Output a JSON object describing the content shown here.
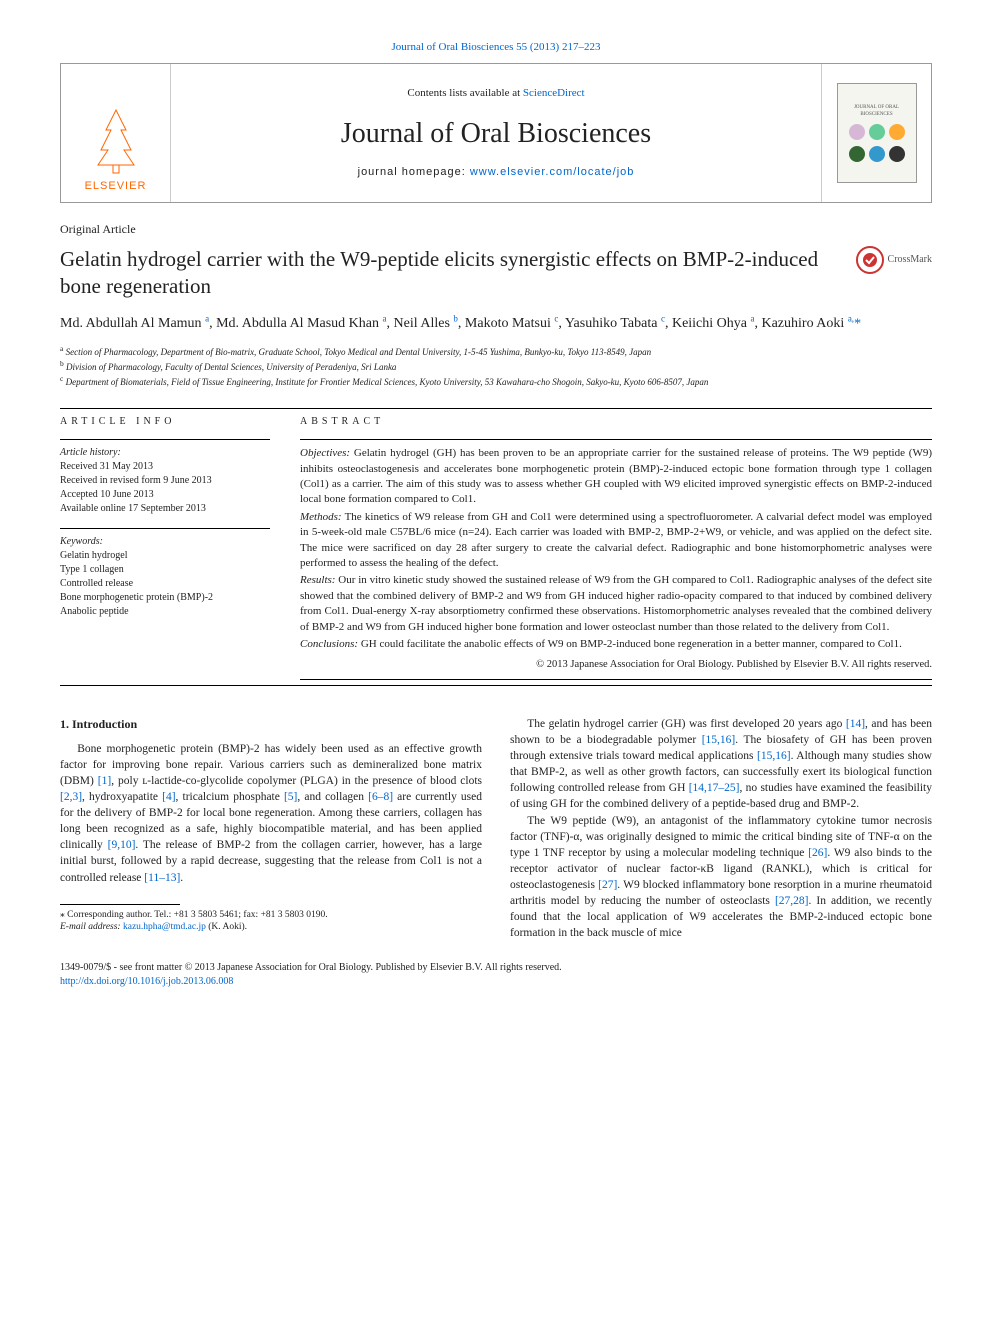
{
  "top_link": "Journal of Oral Biosciences 55 (2013) 217–223",
  "masthead": {
    "sd_prefix": "Contents lists available at ",
    "sd_link": "ScienceDirect",
    "journal_name": "Journal of Oral Biosciences",
    "homepage_prefix": "journal homepage: ",
    "homepage_url": "www.elsevier.com/locate/job",
    "publisher_label": "ELSEVIER",
    "publisher_color": "#ff6600",
    "cover_colors": {
      "row1": [
        "#d6b8d6",
        "#66cc99",
        "#ffaa33"
      ],
      "row2": [
        "#336633",
        "#3399cc",
        "#333333"
      ]
    }
  },
  "article_type": "Original Article",
  "title": "Gelatin hydrogel carrier with the W9-peptide elicits synergistic effects on BMP-2-induced bone regeneration",
  "crossmark_label": "CrossMark",
  "authors_html": "Md. Abdullah Al Mamun <sup>a</sup>, Md. Abdulla Al Masud Khan <sup>a</sup>, Neil Alles <sup>b</sup>, Makoto Matsui <sup>c</sup>, Yasuhiko Tabata <sup>c</sup>, Keiichi Ohya <sup>a</sup>, Kazuhiro Aoki <sup>a,</sup>",
  "affiliations": [
    {
      "sup": "a",
      "text": "Section of Pharmacology, Department of Bio-matrix, Graduate School, Tokyo Medical and Dental University, 1-5-45 Yushima, Bunkyo-ku, Tokyo 113-8549, Japan"
    },
    {
      "sup": "b",
      "text": "Division of Pharmacology, Faculty of Dental Sciences, University of Peradeniya, Sri Lanka"
    },
    {
      "sup": "c",
      "text": "Department of Biomaterials, Field of Tissue Engineering, Institute for Frontier Medical Sciences, Kyoto University, 53 Kawahara-cho Shogoin, Sakyo-ku, Kyoto 606-8507, Japan"
    }
  ],
  "info_label": "ARTICLE INFO",
  "abstract_label": "ABSTRACT",
  "history": {
    "label": "Article history:",
    "received": "Received 31 May 2013",
    "revised": "Received in revised form 9 June 2013",
    "accepted": "Accepted 10 June 2013",
    "online": "Available online 17 September 2013"
  },
  "keywords_label": "Keywords:",
  "keywords": [
    "Gelatin hydrogel",
    "Type 1 collagen",
    "Controlled release",
    "Bone morphogenetic protein (BMP)-2",
    "Anabolic peptide"
  ],
  "abstract": {
    "objectives_label": "Objectives:",
    "objectives": "Gelatin hydrogel (GH) has been proven to be an appropriate carrier for the sustained release of proteins. The W9 peptide (W9) inhibits osteoclastogenesis and accelerates bone morphogenetic protein (BMP)-2-induced ectopic bone formation through type 1 collagen (Col1) as a carrier. The aim of this study was to assess whether GH coupled with W9 elicited improved synergistic effects on BMP-2-induced local bone formation compared to Col1.",
    "methods_label": "Methods:",
    "methods": "The kinetics of W9 release from GH and Col1 were determined using a spectrofluorometer. A calvarial defect model was employed in 5-week-old male C57BL/6 mice (n=24). Each carrier was loaded with BMP-2, BMP-2+W9, or vehicle, and was applied on the defect site. The mice were sacrificed on day 28 after surgery to create the calvarial defect. Radiographic and bone histomorphometric analyses were performed to assess the healing of the defect.",
    "results_label": "Results:",
    "results": "Our in vitro kinetic study showed the sustained release of W9 from the GH compared to Col1. Radiographic analyses of the defect site showed that the combined delivery of BMP-2 and W9 from GH induced higher radio-opacity compared to that induced by combined delivery from Col1. Dual-energy X-ray absorptiometry confirmed these observations. Histomorphometric analyses revealed that the combined delivery of BMP-2 and W9 from GH induced higher bone formation and lower osteoclast number than those related to the delivery from Col1.",
    "conclusions_label": "Conclusions:",
    "conclusions": "GH could facilitate the anabolic effects of W9 on BMP-2-induced bone regeneration in a better manner, compared to Col1.",
    "copyright": "© 2013 Japanese Association for Oral Biology. Published by Elsevier B.V. All rights reserved."
  },
  "intro_heading": "1.  Introduction",
  "intro_paragraphs": [
    "Bone morphogenetic protein (BMP)-2 has widely been used as an effective growth factor for improving bone repair. Various carriers such as demineralized bone matrix (DBM) <span class='ref'>[1]</span>, poly ʟ-lactide-co-glycolide copolymer (PLGA) in the presence of blood clots <span class='ref'>[2,3]</span>, hydroxyapatite <span class='ref'>[4]</span>, tricalcium phosphate <span class='ref'>[5]</span>, and collagen <span class='ref'>[6–8]</span> are currently used for the delivery of BMP-2 for local bone regeneration. Among these carriers, collagen has long been recognized as a safe, highly biocompatible material, and has been applied clinically <span class='ref'>[9,10]</span>. The release of BMP-2 from the collagen carrier, however, has a large initial burst, followed by a rapid decrease, suggesting that the release from Col1 is not a controlled release <span class='ref'>[11–13]</span>.",
    "The gelatin hydrogel carrier (GH) was first developed 20 years ago <span class='ref'>[14]</span>, and has been shown to be a biodegradable polymer <span class='ref'>[15,16]</span>. The biosafety of GH has been proven through extensive trials toward medical applications <span class='ref'>[15,16]</span>. Although many studies show that BMP-2, as well as other growth factors, can successfully exert its biological function following controlled release from GH <span class='ref'>[14,17–25]</span>, no studies have examined the feasibility of using GH for the combined delivery of a peptide-based drug and BMP-2.",
    "The W9 peptide (W9), an antagonist of the inflammatory cytokine tumor necrosis factor (TNF)-α, was originally designed to mimic the critical binding site of TNF-α on the type 1 TNF receptor by using a molecular modeling technique <span class='ref'>[26]</span>. W9 also binds to the receptor activator of nuclear factor-κB ligand (RANKL), which is critical for osteoclastogenesis <span class='ref'>[27]</span>. W9 blocked inflammatory bone resorption in a murine rheumatoid arthritis model by reducing the number of osteoclasts <span class='ref'>[27,28]</span>. In addition, we recently found that the local application of W9 accelerates the BMP-2-induced ectopic bone formation in the back muscle of mice"
  ],
  "footnote": {
    "star": "⁎",
    "corr": "Corresponding author. Tel.: +81 3 5803 5461; fax: +81 3 5803 0190.",
    "email_label": "E-mail address: ",
    "email": "kazu.hpha@tmd.ac.jp",
    "email_suffix": " (K. Aoki)."
  },
  "bottom": {
    "line1": "1349-0079/$ - see front matter © 2013 Japanese Association for Oral Biology. Published by Elsevier B.V. All rights reserved.",
    "doi": "http://dx.doi.org/10.1016/j.job.2013.06.008"
  }
}
